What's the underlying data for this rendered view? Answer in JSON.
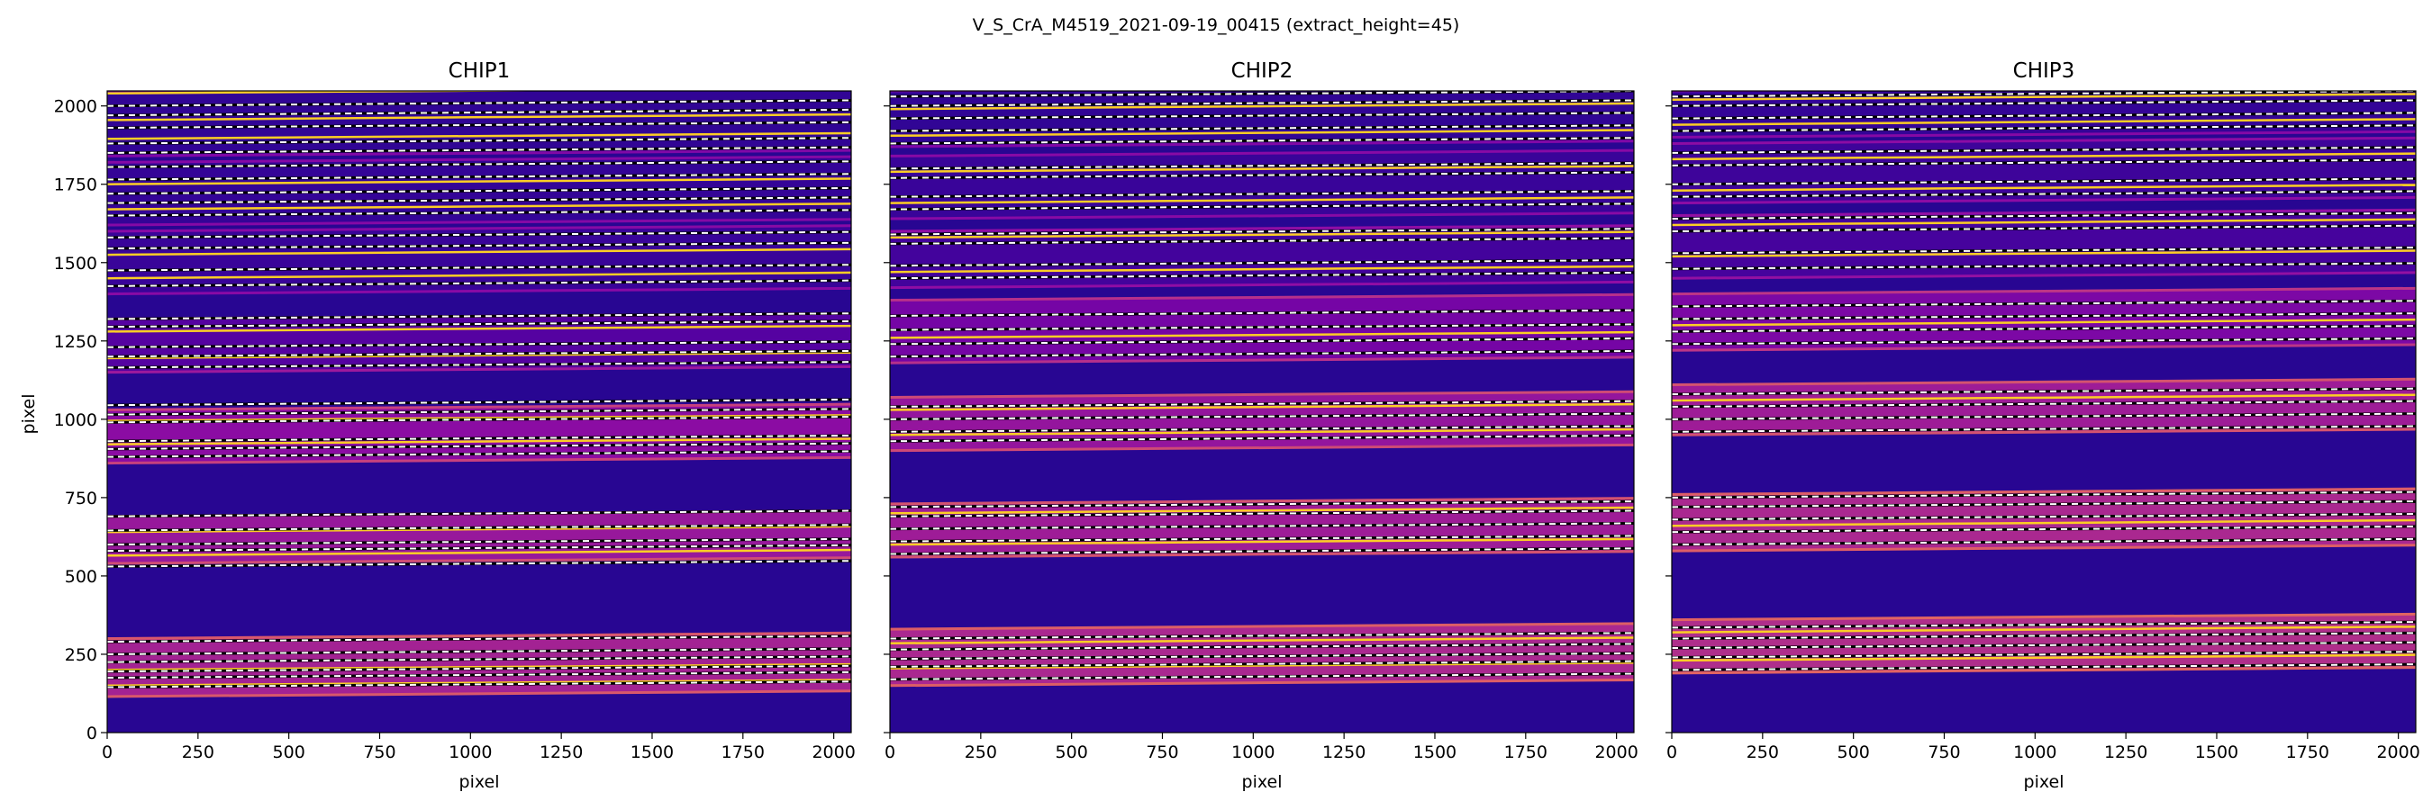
{
  "figure": {
    "suptitle": "V_S_CrA_M4519_2021-09-19_00415  (extract_height=45)",
    "colormap": [
      "#0d0887",
      "#3a049a",
      "#6a00a8",
      "#900da4",
      "#b12a90",
      "#cc4778",
      "#e16462",
      "#f2844b",
      "#fca636",
      "#fcce25",
      "#f0f921"
    ]
  },
  "chart_data": [
    {
      "type": "heatmap",
      "title": "CHIP1",
      "xlabel": "pixel",
      "ylabel": "pixel",
      "xlim": [
        0,
        2048
      ],
      "ylim": [
        0,
        2048
      ],
      "xticks": [
        0,
        250,
        500,
        750,
        1000,
        1250,
        1500,
        1750,
        2000
      ],
      "yticks": [
        0,
        250,
        500,
        750,
        1000,
        1250,
        1500,
        1750,
        2000
      ],
      "background_level": 0.06,
      "bands": [
        {
          "y0": 115,
          "y1": 300,
          "level": 0.38
        },
        {
          "y0": 540,
          "y1": 690,
          "level": 0.34
        },
        {
          "y0": 860,
          "y1": 1030,
          "level": 0.3
        },
        {
          "y0": 1150,
          "y1": 1320,
          "level": 0.16
        },
        {
          "y0": 1400,
          "y1": 1600,
          "level": 0.1
        },
        {
          "y0": 1620,
          "y1": 1820,
          "level": 0.09
        },
        {
          "y0": 1840,
          "y1": 2048,
          "level": 0.08
        }
      ],
      "trace_lines": [
        145,
        175,
        195,
        225,
        250,
        290,
        530,
        580,
        600,
        645,
        690,
        880,
        905,
        930,
        990,
        1015,
        1045,
        1165,
        1200,
        1230,
        1295,
        1320,
        1425,
        1475,
        1545,
        1580,
        1650,
        1690,
        1720,
        1765,
        1805,
        1850,
        1880,
        1930,
        1970,
        2000
      ],
      "bright_orders": [
        150,
        200,
        565,
        640,
        920,
        995,
        1195,
        1280,
        1450,
        1525,
        1670,
        1750,
        1895,
        1955,
        2040
      ]
    },
    {
      "type": "heatmap",
      "title": "CHIP2",
      "xlabel": "pixel",
      "ylabel": "",
      "xlim": [
        0,
        2048
      ],
      "ylim": [
        0,
        2048
      ],
      "xticks": [
        0,
        250,
        500,
        750,
        1000,
        1250,
        1500,
        1750,
        2000
      ],
      "yticks": [
        0,
        250,
        500,
        750,
        1000,
        1250,
        1500,
        1750,
        2000
      ],
      "background_level": 0.06,
      "bands": [
        {
          "y0": 150,
          "y1": 330,
          "level": 0.4
        },
        {
          "y0": 560,
          "y1": 730,
          "level": 0.36
        },
        {
          "y0": 900,
          "y1": 1070,
          "level": 0.33
        },
        {
          "y0": 1180,
          "y1": 1380,
          "level": 0.24
        },
        {
          "y0": 1420,
          "y1": 1600,
          "level": 0.12
        },
        {
          "y0": 1640,
          "y1": 1840,
          "level": 0.1
        },
        {
          "y0": 1870,
          "y1": 2048,
          "level": 0.08
        }
      ],
      "trace_lines": [
        170,
        210,
        235,
        265,
        300,
        570,
        610,
        650,
        690,
        720,
        930,
        960,
        1000,
        1040,
        1200,
        1240,
        1285,
        1330,
        1450,
        1490,
        1560,
        1590,
        1670,
        1710,
        1770,
        1800,
        1880,
        1920,
        1960,
        2000,
        2030
      ],
      "bright_orders": [
        205,
        285,
        600,
        700,
        950,
        1030,
        1260,
        1470,
        1580,
        1690,
        1790,
        1905,
        1990
      ]
    },
    {
      "type": "heatmap",
      "title": "CHIP3",
      "xlabel": "pixel",
      "ylabel": "",
      "xlim": [
        0,
        2048
      ],
      "ylim": [
        0,
        2048
      ],
      "xticks": [
        0,
        250,
        500,
        750,
        1000,
        1250,
        1500,
        1750,
        2000
      ],
      "yticks": [
        0,
        250,
        500,
        750,
        1000,
        1250,
        1500,
        1750,
        2000
      ],
      "background_level": 0.06,
      "bands": [
        {
          "y0": 190,
          "y1": 360,
          "level": 0.42
        },
        {
          "y0": 580,
          "y1": 760,
          "level": 0.4
        },
        {
          "y0": 950,
          "y1": 1110,
          "level": 0.36
        },
        {
          "y0": 1220,
          "y1": 1400,
          "level": 0.26
        },
        {
          "y0": 1450,
          "y1": 1650,
          "level": 0.13
        },
        {
          "y0": 1690,
          "y1": 1880,
          "level": 0.11
        },
        {
          "y0": 1900,
          "y1": 2048,
          "level": 0.09
        }
      ],
      "trace_lines": [
        200,
        240,
        270,
        300,
        335,
        600,
        640,
        680,
        720,
        750,
        960,
        1000,
        1040,
        1080,
        1240,
        1280,
        1320,
        1360,
        1480,
        1530,
        1600,
        1640,
        1710,
        1750,
        1810,
        1850,
        1920,
        1960,
        2000,
        2030
      ],
      "bright_orders": [
        230,
        320,
        660,
        720,
        1000,
        1060,
        1300,
        1520,
        1620,
        1730,
        1830,
        1940,
        2020
      ]
    }
  ]
}
